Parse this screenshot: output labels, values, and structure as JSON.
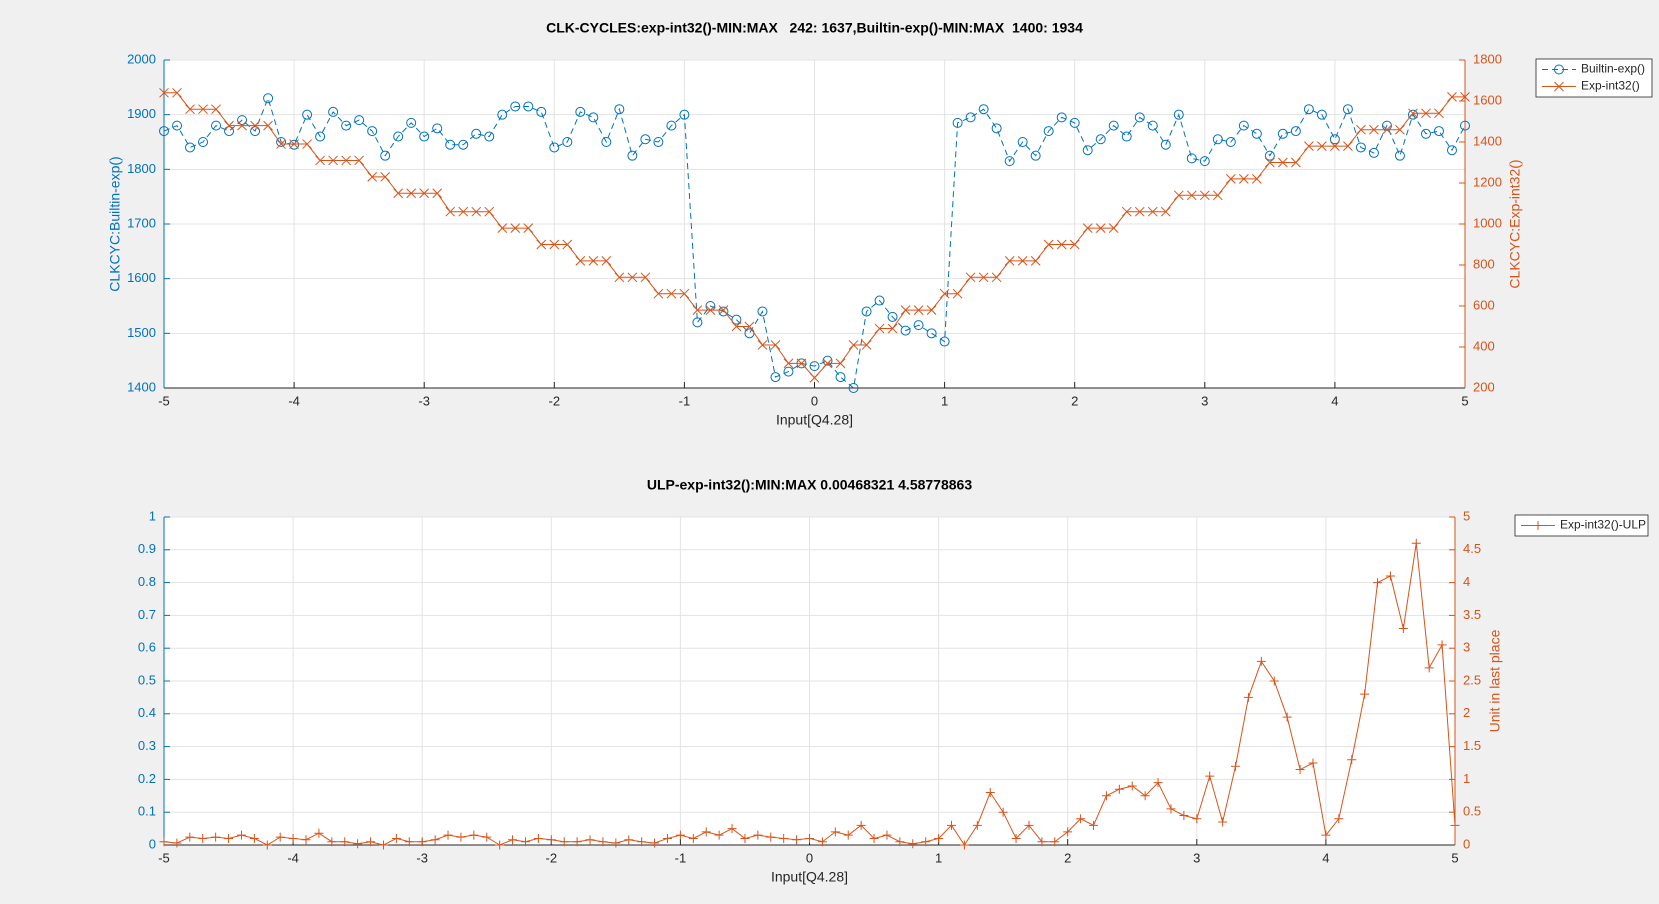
{
  "chart_data": [
    {
      "type": "line",
      "title": "CLK-CYCLES:exp-int32()-MIN:MAX   242: 1637,Builtin-exp()-MIN:MAX  1400: 1934",
      "x_label": "Input[Q4.28]",
      "y_label": "CLKCYC:Builtin-exp()",
      "y2_label": "CLKCYC:Exp-int32()",
      "x": [
        -5,
        -4.9,
        -4.8,
        -4.7,
        -4.6,
        -4.5,
        -4.4,
        -4.3,
        -4.2,
        -4.1,
        -4,
        -3.9,
        -3.8,
        -3.7,
        -3.6,
        -3.5,
        -3.4,
        -3.3,
        -3.2,
        -3.1,
        -3,
        -2.9,
        -2.8,
        -2.7,
        -2.6,
        -2.5,
        -2.4,
        -2.3,
        -2.2,
        -2.1,
        -2,
        -1.9,
        -1.8,
        -1.7,
        -1.6,
        -1.5,
        -1.4,
        -1.3,
        -1.2,
        -1.1,
        -1,
        -0.9,
        -0.8,
        -0.7,
        -0.6,
        -0.5,
        -0.4,
        -0.3,
        -0.2,
        -0.1,
        0,
        0.1,
        0.2,
        0.3,
        0.4,
        0.5,
        0.6,
        0.7,
        0.8,
        0.9,
        1,
        1.1,
        1.2,
        1.3,
        1.4,
        1.5,
        1.6,
        1.7,
        1.8,
        1.9,
        2,
        2.1,
        2.2,
        2.3,
        2.4,
        2.5,
        2.6,
        2.7,
        2.8,
        2.9,
        3,
        3.1,
        3.2,
        3.3,
        3.4,
        3.5,
        3.6,
        3.7,
        3.8,
        3.9,
        4,
        4.1,
        4.2,
        4.3,
        4.4,
        4.5,
        4.6,
        4.7,
        4.8,
        4.9,
        5
      ],
      "series": [
        {
          "name": "Builtin-exp()",
          "color": "#0072bd",
          "marker": "o",
          "linestyle": "dashed",
          "values": [
            1870,
            1880,
            1840,
            1850,
            1880,
            1870,
            1890,
            1870,
            1930,
            1850,
            1845,
            1900,
            1860,
            1905,
            1880,
            1890,
            1870,
            1825,
            1860,
            1885,
            1860,
            1875,
            1845,
            1845,
            1865,
            1860,
            1900,
            1915,
            1915,
            1905,
            1840,
            1850,
            1905,
            1895,
            1850,
            1910,
            1825,
            1855,
            1850,
            1880,
            1900,
            1520,
            1550,
            1540,
            1525,
            1500,
            1540,
            1420,
            1430,
            1445,
            1440,
            1450,
            1420,
            1400,
            1540,
            1560,
            1530,
            1505,
            1515,
            1500,
            1485,
            1885,
            1895,
            1910,
            1875,
            1815,
            1850,
            1825,
            1870,
            1895,
            1885,
            1835,
            1855,
            1880,
            1860,
            1895,
            1880,
            1845,
            1900,
            1820,
            1815,
            1855,
            1850,
            1880,
            1865,
            1825,
            1865,
            1870,
            1910,
            1900,
            1855,
            1910,
            1840,
            1830,
            1880,
            1825,
            1900,
            1865,
            1870,
            1835,
            1880
          ]
        },
        {
          "name": "Exp-int32()",
          "color": "#d95319",
          "marker": "x",
          "linestyle": "solid",
          "axis": "y2",
          "values": [
            1640,
            1640,
            1560,
            1560,
            1560,
            1480,
            1480,
            1480,
            1480,
            1390,
            1390,
            1390,
            1310,
            1310,
            1310,
            1310,
            1230,
            1230,
            1150,
            1150,
            1150,
            1150,
            1060,
            1060,
            1060,
            1060,
            980,
            980,
            980,
            900,
            900,
            900,
            820,
            820,
            820,
            740,
            740,
            740,
            660,
            660,
            660,
            580,
            580,
            580,
            500,
            500,
            410,
            410,
            320,
            320,
            250,
            320,
            320,
            410,
            410,
            490,
            490,
            580,
            580,
            580,
            660,
            660,
            740,
            740,
            740,
            820,
            820,
            820,
            900,
            900,
            900,
            980,
            980,
            980,
            1060,
            1060,
            1060,
            1060,
            1140,
            1140,
            1140,
            1140,
            1220,
            1220,
            1220,
            1300,
            1300,
            1300,
            1380,
            1380,
            1380,
            1380,
            1460,
            1460,
            1460,
            1460,
            1540,
            1540,
            1540,
            1620,
            1620
          ]
        }
      ],
      "xlim": [
        -5,
        5
      ],
      "xticks": [
        -5,
        -4,
        -3,
        -2,
        -1,
        0,
        1,
        2,
        3,
        4,
        5
      ],
      "ylim": [
        1400,
        2000
      ],
      "yticks": [
        1400,
        1500,
        1600,
        1700,
        1800,
        1900,
        2000
      ],
      "y2lim": [
        200,
        1800
      ],
      "y2ticks": [
        200,
        400,
        600,
        800,
        1000,
        1200,
        1400,
        1600,
        1800
      ],
      "grid": true,
      "legend": "northeastoutside",
      "y_color": "#0072bd",
      "y2_color": "#d95319"
    },
    {
      "type": "line",
      "title": "ULP-exp-int32():MIN:MAX 0.00468321 4.58778863",
      "x_label": "Input[Q4.28]",
      "y2_label": "Unit in last place",
      "x": [
        -5,
        -4.9,
        -4.8,
        -4.7,
        -4.6,
        -4.5,
        -4.4,
        -4.3,
        -4.2,
        -4.1,
        -4,
        -3.9,
        -3.8,
        -3.7,
        -3.6,
        -3.5,
        -3.4,
        -3.3,
        -3.2,
        -3.1,
        -3,
        -2.9,
        -2.8,
        -2.7,
        -2.6,
        -2.5,
        -2.4,
        -2.3,
        -2.2,
        -2.1,
        -2,
        -1.9,
        -1.8,
        -1.7,
        -1.6,
        -1.5,
        -1.4,
        -1.3,
        -1.2,
        -1.1,
        -1,
        -0.9,
        -0.8,
        -0.7,
        -0.6,
        -0.5,
        -0.4,
        -0.3,
        -0.2,
        -0.1,
        0,
        0.1,
        0.2,
        0.3,
        0.4,
        0.5,
        0.6,
        0.7,
        0.8,
        0.9,
        1,
        1.1,
        1.2,
        1.3,
        1.4,
        1.5,
        1.6,
        1.7,
        1.8,
        1.9,
        2,
        2.1,
        2.2,
        2.3,
        2.4,
        2.5,
        2.6,
        2.7,
        2.8,
        2.9,
        3,
        3.1,
        3.2,
        3.3,
        3.4,
        3.5,
        3.6,
        3.7,
        3.8,
        3.9,
        4,
        4.1,
        4.2,
        4.3,
        4.4,
        4.5,
        4.6,
        4.7,
        4.8,
        4.9,
        5
      ],
      "series": [
        {
          "name": "Exp-int32()-ULP",
          "color": "#d95319",
          "marker": "+",
          "linestyle": "solid",
          "axis": "y2",
          "values": [
            0.05,
            0.03,
            0.12,
            0.1,
            0.12,
            0.1,
            0.15,
            0.1,
            0,
            0.12,
            0.1,
            0.08,
            0.18,
            0.05,
            0.05,
            0.02,
            0.05,
            0,
            0.1,
            0.05,
            0.05,
            0.08,
            0.15,
            0.12,
            0.15,
            0.12,
            0,
            0.08,
            0.05,
            0.1,
            0.08,
            0.05,
            0.05,
            0.08,
            0.05,
            0.03,
            0.08,
            0.05,
            0.03,
            0.1,
            0.15,
            0.1,
            0.2,
            0.15,
            0.25,
            0.1,
            0.15,
            0.12,
            0.1,
            0.08,
            0.1,
            0.05,
            0.2,
            0.15,
            0.3,
            0.1,
            0.15,
            0.05,
            0.02,
            0.05,
            0.1,
            0.3,
            0,
            0.3,
            0.8,
            0.5,
            0.1,
            0.3,
            0.05,
            0.05,
            0.2,
            0.4,
            0.3,
            0.75,
            0.85,
            0.9,
            0.75,
            0.95,
            0.55,
            0.45,
            0.4,
            1.05,
            0.35,
            1.2,
            2.25,
            2.8,
            2.5,
            1.95,
            1.15,
            1.25,
            0.15,
            0.4,
            1.3,
            2.3,
            4,
            4.1,
            3.3,
            4.6,
            2.7,
            3.05,
            0.3
          ]
        }
      ],
      "xlim": [
        -5,
        5
      ],
      "xticks": [
        -5,
        -4,
        -3,
        -2,
        -1,
        0,
        1,
        2,
        3,
        4,
        5
      ],
      "ylim": [
        0,
        1
      ],
      "yticks": [
        0,
        0.1,
        0.2,
        0.3,
        0.4,
        0.5,
        0.6,
        0.7,
        0.8,
        0.9,
        1
      ],
      "y2lim": [
        0,
        5
      ],
      "y2ticks": [
        0,
        0.5,
        1,
        1.5,
        2,
        2.5,
        3,
        3.5,
        4,
        4.5,
        5
      ],
      "grid": true,
      "legend": "northeastoutside",
      "y_color": "#0072bd",
      "y2_color": "#d95319"
    }
  ]
}
